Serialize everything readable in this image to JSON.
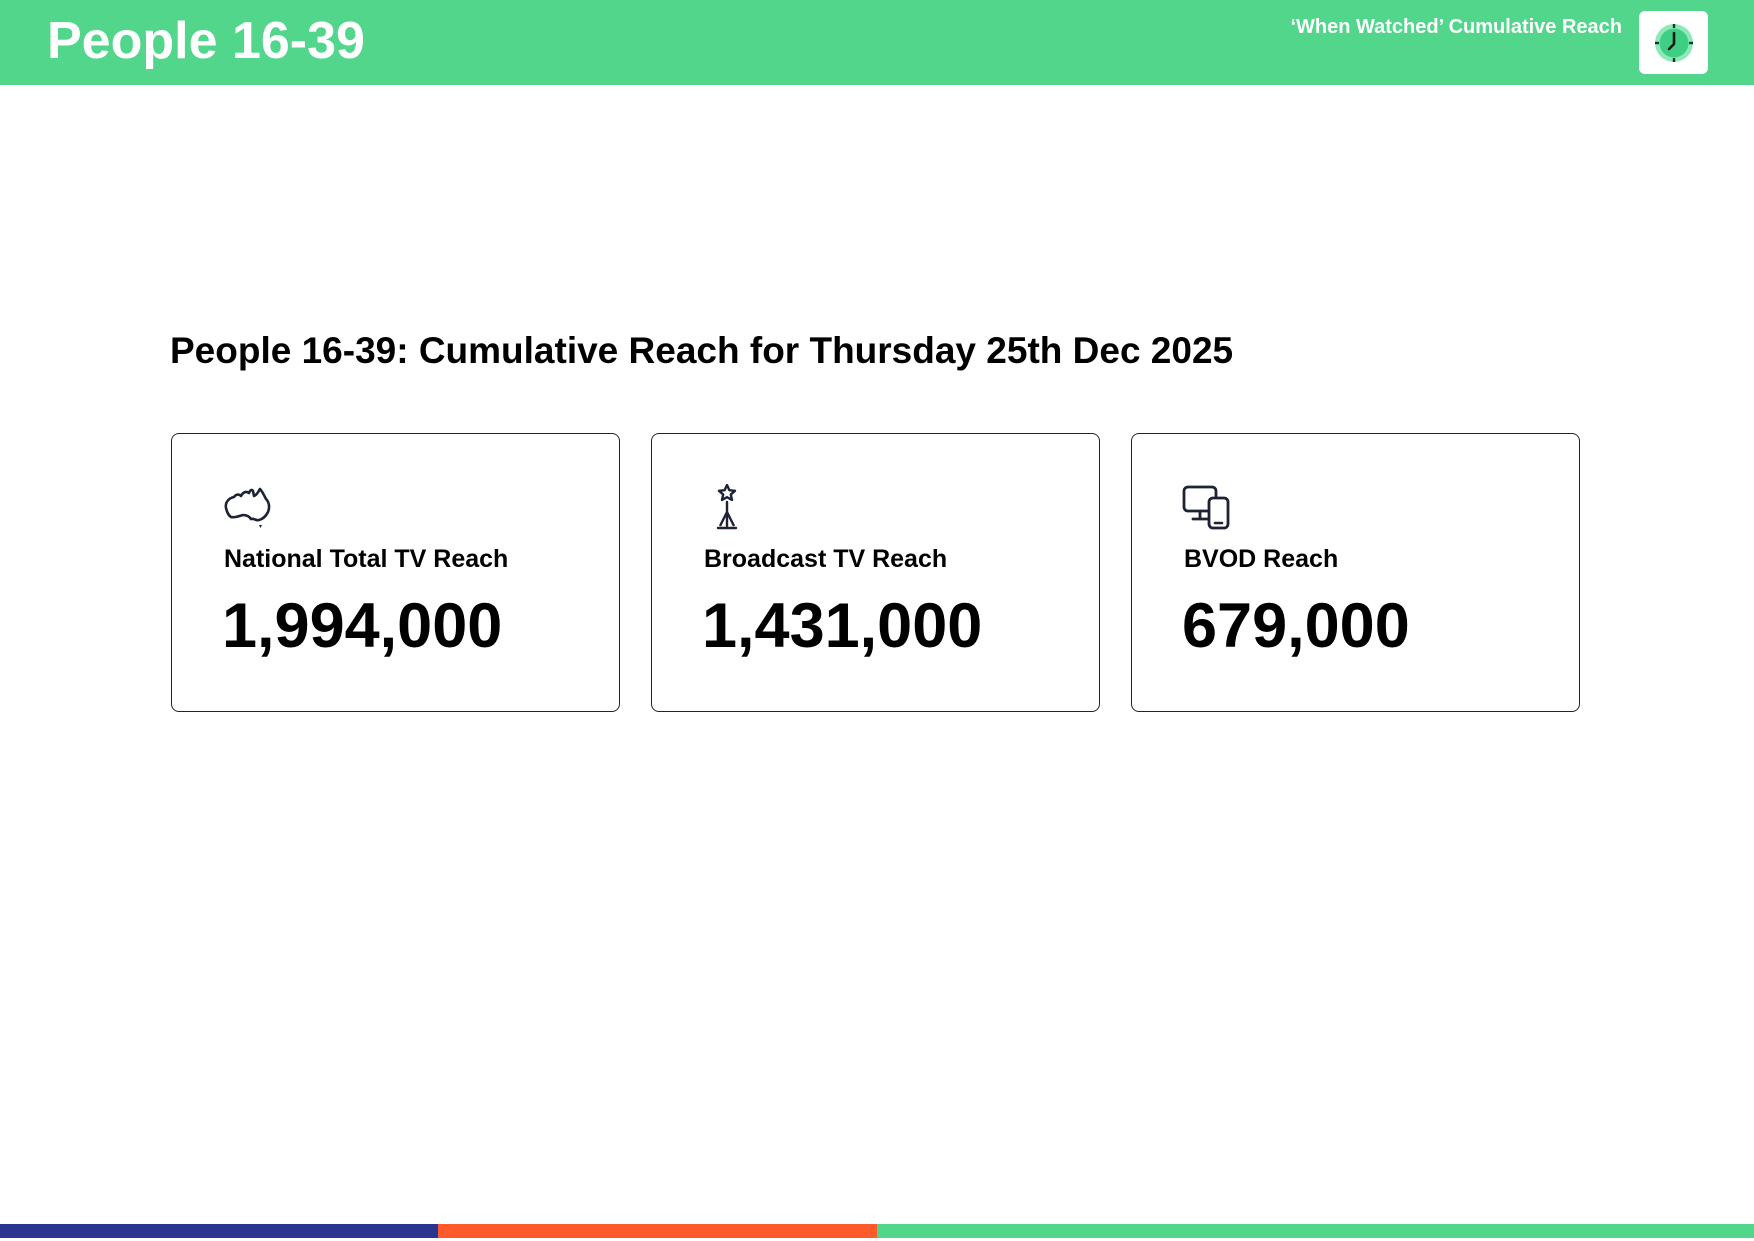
{
  "header": {
    "title": "People 16-39",
    "subtitle": "‘When Watched’ Cumulative Reach",
    "logo_icon": "clock-icon"
  },
  "main": {
    "heading": "People 16-39: Cumulative Reach for Thursday 25th Dec 2025",
    "cards": [
      {
        "icon": "australia-map-icon",
        "label": "National Total TV Reach",
        "value": "1,994,000"
      },
      {
        "icon": "broadcast-tower-icon",
        "label": "Broadcast TV Reach",
        "value": "1,431,000"
      },
      {
        "icon": "devices-icon",
        "label": "BVOD Reach",
        "value": "679,000"
      }
    ]
  },
  "footer": {
    "bar_colors": [
      "#2a3590",
      "#ff5a2b",
      "#52d68b"
    ]
  },
  "colors": {
    "brand_green": "#52d68b",
    "navy": "#2a3590",
    "orange": "#ff5a2b",
    "card_border": "#1e2235"
  }
}
